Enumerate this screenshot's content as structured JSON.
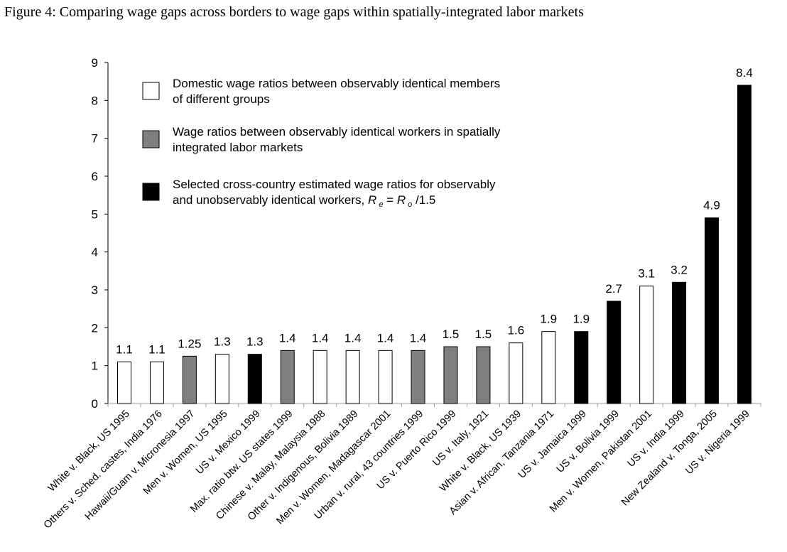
{
  "chart_data": {
    "type": "bar",
    "title": "Figure 4: Comparing wage gaps across borders to wage gaps within spatially-integrated labor markets",
    "xlabel": "",
    "ylabel": "",
    "ylim": [
      0,
      9
    ],
    "yticks": [
      "0",
      "1",
      "2",
      "3",
      "4",
      "5",
      "6",
      "7",
      "8",
      "9"
    ],
    "legend_placement": "top-left",
    "legend": [
      {
        "key": "domestic",
        "color": "#ffffff",
        "lines": [
          "Domestic wage ratios between observably identical members",
          "of different groups"
        ]
      },
      {
        "key": "spatial",
        "color": "#808080",
        "lines": [
          "Wage ratios between observably identical workers in spatially",
          "integrated labor markets"
        ]
      },
      {
        "key": "cross",
        "color": "#000000",
        "lines": [
          "Selected cross-country estimated wage ratios for observably",
          "and unobservably identical workers, R e = R o /1.5"
        ]
      }
    ],
    "categories": [
      "White v. Black, US 1995",
      "Others v. Sched. castes, India 1976",
      "Hawaii/Guam v. Micronesia 1997",
      "Men v. Women, US 1995",
      "US v. Mexico 1999",
      "Max. ratio btw. US states 1999",
      "Chinese v. Malay, Malaysia 1988",
      "Other v. Indigenous, Bolivia 1989",
      "Men v. Women, Madagascar 2001",
      "Urban v. rural, 43 countries 1999",
      "US v. Puerto Rico 1999",
      "US v. Italy, 1921",
      "White v. Black, US 1939",
      "Asian v. African, Tanzania 1971",
      "US v. Jamaica 1999",
      "US v. Bolivia 1999",
      "Men v. Women, Pakistan 2001",
      "US v. India 1999",
      "New Zealand v. Tonga, 2005",
      "US v. Nigeria 1999"
    ],
    "values": [
      1.1,
      1.1,
      1.25,
      1.3,
      1.3,
      1.4,
      1.4,
      1.4,
      1.4,
      1.4,
      1.5,
      1.5,
      1.6,
      1.9,
      1.9,
      2.7,
      3.1,
      3.2,
      4.9,
      8.4
    ],
    "labels": [
      "1.1",
      "1.1",
      "1.25",
      "1.3",
      "1.3",
      "1.4",
      "1.4",
      "1.4",
      "1.4",
      "1.4",
      "1.5",
      "1.5",
      "1.6",
      "1.9",
      "1.9",
      "2.7",
      "3.1",
      "3.2",
      "4.9",
      "8.4"
    ],
    "groups": [
      "domestic",
      "domestic",
      "spatial",
      "domestic",
      "cross",
      "spatial",
      "domestic",
      "domestic",
      "domestic",
      "spatial",
      "spatial",
      "spatial",
      "domestic",
      "domestic",
      "cross",
      "cross",
      "domestic",
      "cross",
      "cross",
      "cross"
    ]
  }
}
